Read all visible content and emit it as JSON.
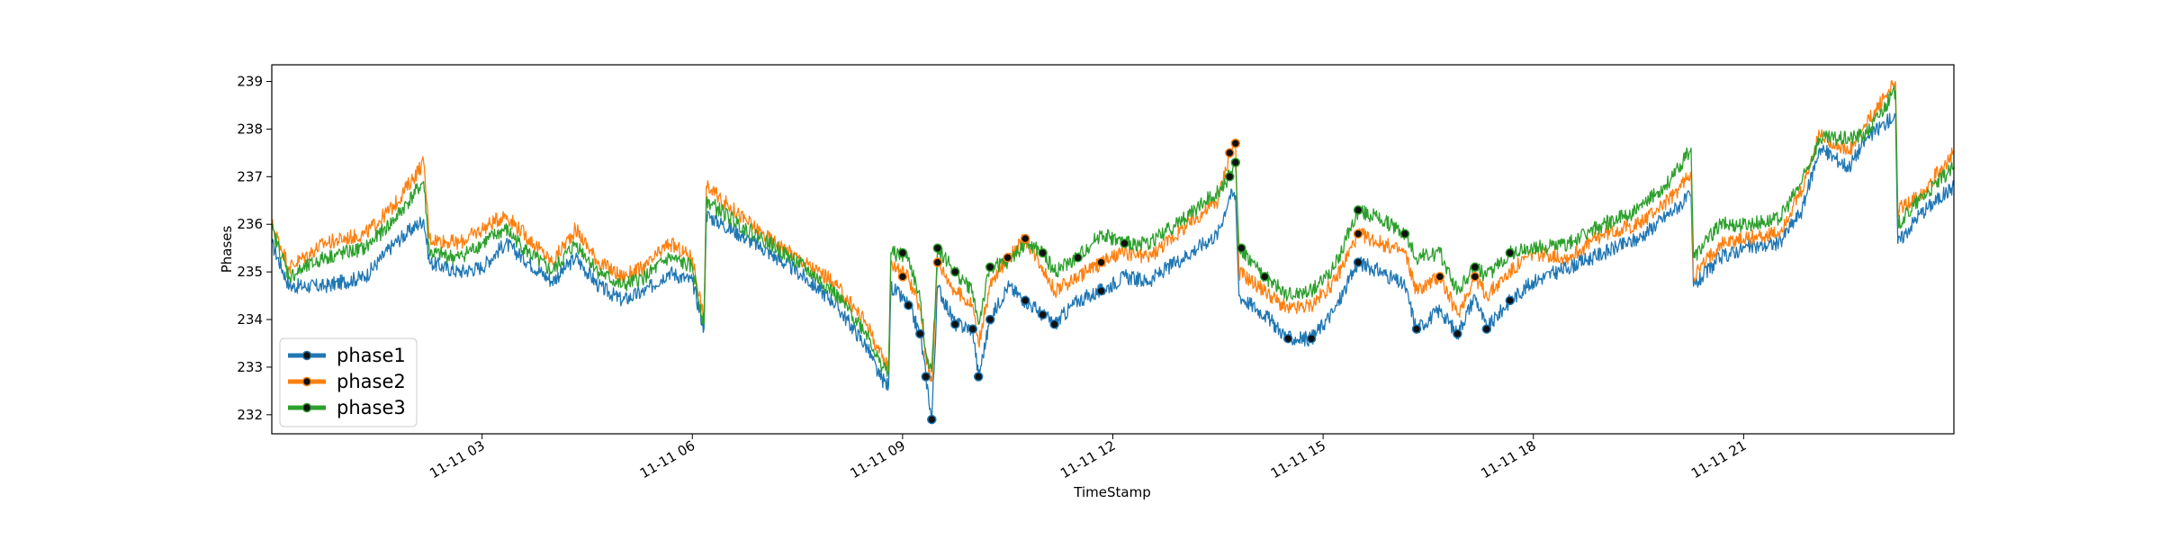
{
  "chart_data": {
    "type": "line",
    "title": "",
    "xlabel": "TimeStamp",
    "ylabel": "Phases",
    "x_range": [
      "00:00",
      "24:00"
    ],
    "ylim": [
      231.6,
      239.35
    ],
    "yticks": [
      232,
      233,
      234,
      235,
      236,
      237,
      238,
      239
    ],
    "xticks": [
      {
        "t": "03:00",
        "label": "11-11 03"
      },
      {
        "t": "06:00",
        "label": "11-11 06"
      },
      {
        "t": "09:00",
        "label": "11-11 09"
      },
      {
        "t": "12:00",
        "label": "11-11 12"
      },
      {
        "t": "15:00",
        "label": "11-11 15"
      },
      {
        "t": "18:00",
        "label": "11-11 18"
      },
      {
        "t": "21:00",
        "label": "11-11 21"
      }
    ],
    "grid": false,
    "legend": "lower-left",
    "series": [
      {
        "name": "phase1",
        "color": "#1f77b4",
        "points": [
          [
            "00:00",
            235.6
          ],
          [
            "00:15",
            234.7
          ],
          [
            "00:45",
            234.7
          ],
          [
            "01:20",
            234.9
          ],
          [
            "01:45",
            235.6
          ],
          [
            "02:10",
            236.1
          ],
          [
            "02:15",
            235.2
          ],
          [
            "02:40",
            235.0
          ],
          [
            "03:00",
            235.1
          ],
          [
            "03:20",
            235.6
          ],
          [
            "03:40",
            235.2
          ],
          [
            "04:00",
            234.8
          ],
          [
            "04:20",
            235.3
          ],
          [
            "04:40",
            234.7
          ],
          [
            "05:00",
            234.4
          ],
          [
            "05:20",
            234.6
          ],
          [
            "05:40",
            235.0
          ],
          [
            "06:00",
            234.8
          ],
          [
            "06:10",
            233.8
          ],
          [
            "06:12",
            236.2
          ],
          [
            "06:40",
            235.8
          ],
          [
            "07:00",
            235.5
          ],
          [
            "07:30",
            235.0
          ],
          [
            "08:00",
            234.4
          ],
          [
            "08:30",
            233.4
          ],
          [
            "08:40",
            232.8
          ],
          [
            "08:48",
            232.6
          ],
          [
            "08:50",
            234.7
          ],
          [
            "09:05",
            234.3
          ],
          [
            "09:15",
            233.7
          ],
          [
            "09:20",
            232.8
          ],
          [
            "09:25",
            231.9
          ],
          [
            "09:30",
            234.7
          ],
          [
            "09:45",
            233.9
          ],
          [
            "10:00",
            233.8
          ],
          [
            "10:05",
            232.8
          ],
          [
            "10:15",
            234.0
          ],
          [
            "10:30",
            234.7
          ],
          [
            "10:45",
            234.4
          ],
          [
            "11:00",
            234.1
          ],
          [
            "11:10",
            233.9
          ],
          [
            "11:30",
            234.4
          ],
          [
            "11:50",
            234.6
          ],
          [
            "12:10",
            234.9
          ],
          [
            "12:30",
            234.8
          ],
          [
            "13:00",
            235.3
          ],
          [
            "13:30",
            235.8
          ],
          [
            "13:40",
            236.6
          ],
          [
            "13:45",
            236.6
          ],
          [
            "13:48",
            234.5
          ],
          [
            "14:10",
            234.1
          ],
          [
            "14:30",
            233.6
          ],
          [
            "14:50",
            233.6
          ],
          [
            "15:10",
            234.2
          ],
          [
            "15:30",
            235.2
          ],
          [
            "15:50",
            235.0
          ],
          [
            "16:10",
            234.7
          ],
          [
            "16:20",
            233.8
          ],
          [
            "16:40",
            234.2
          ],
          [
            "16:55",
            233.7
          ],
          [
            "17:10",
            234.5
          ],
          [
            "17:20",
            233.8
          ],
          [
            "17:40",
            234.4
          ],
          [
            "18:00",
            234.8
          ],
          [
            "18:30",
            235.1
          ],
          [
            "19:00",
            235.4
          ],
          [
            "19:30",
            235.7
          ],
          [
            "20:00",
            236.3
          ],
          [
            "20:15",
            236.6
          ],
          [
            "20:17",
            234.7
          ],
          [
            "20:40",
            235.3
          ],
          [
            "21:00",
            235.5
          ],
          [
            "21:30",
            235.6
          ],
          [
            "21:50",
            236.3
          ],
          [
            "22:05",
            237.6
          ],
          [
            "22:30",
            237.2
          ],
          [
            "22:45",
            237.8
          ],
          [
            "23:10",
            238.3
          ],
          [
            "23:12",
            235.6
          ],
          [
            "23:30",
            236.2
          ],
          [
            "24:00",
            236.8
          ]
        ]
      },
      {
        "name": "phase2",
        "color": "#ff7f0e",
        "points": [
          [
            "00:00",
            236.0
          ],
          [
            "00:15",
            235.1
          ],
          [
            "00:45",
            235.6
          ],
          [
            "01:20",
            235.8
          ],
          [
            "01:45",
            236.4
          ],
          [
            "02:10",
            237.3
          ],
          [
            "02:15",
            235.7
          ],
          [
            "02:40",
            235.6
          ],
          [
            "03:00",
            235.9
          ],
          [
            "03:20",
            236.2
          ],
          [
            "03:40",
            235.7
          ],
          [
            "04:00",
            235.2
          ],
          [
            "04:20",
            235.9
          ],
          [
            "04:40",
            235.2
          ],
          [
            "05:00",
            234.9
          ],
          [
            "05:20",
            235.1
          ],
          [
            "05:40",
            235.6
          ],
          [
            "06:00",
            235.3
          ],
          [
            "06:10",
            234.0
          ],
          [
            "06:12",
            236.8
          ],
          [
            "06:40",
            236.2
          ],
          [
            "07:00",
            235.8
          ],
          [
            "07:30",
            235.3
          ],
          [
            "08:00",
            234.8
          ],
          [
            "08:30",
            233.9
          ],
          [
            "08:40",
            233.3
          ],
          [
            "08:48",
            233.0
          ],
          [
            "08:50",
            235.2
          ],
          [
            "09:05",
            234.9
          ],
          [
            "09:15",
            234.2
          ],
          [
            "09:20",
            233.2
          ],
          [
            "09:25",
            232.7
          ],
          [
            "09:30",
            235.2
          ],
          [
            "09:45",
            234.6
          ],
          [
            "10:00",
            234.3
          ],
          [
            "10:05",
            233.5
          ],
          [
            "10:15",
            234.7
          ],
          [
            "10:30",
            235.3
          ],
          [
            "10:45",
            235.7
          ],
          [
            "11:00",
            235.1
          ],
          [
            "11:10",
            234.6
          ],
          [
            "11:30",
            234.9
          ],
          [
            "11:50",
            235.2
          ],
          [
            "12:10",
            235.4
          ],
          [
            "12:30",
            235.3
          ],
          [
            "13:00",
            235.9
          ],
          [
            "13:30",
            236.5
          ],
          [
            "13:40",
            237.5
          ],
          [
            "13:45",
            237.7
          ],
          [
            "13:48",
            235.0
          ],
          [
            "14:10",
            234.6
          ],
          [
            "14:30",
            234.2
          ],
          [
            "14:50",
            234.3
          ],
          [
            "15:10",
            234.8
          ],
          [
            "15:30",
            235.8
          ],
          [
            "15:50",
            235.6
          ],
          [
            "16:10",
            235.4
          ],
          [
            "16:20",
            234.6
          ],
          [
            "16:40",
            234.9
          ],
          [
            "16:55",
            234.1
          ],
          [
            "17:10",
            234.9
          ],
          [
            "17:20",
            234.5
          ],
          [
            "17:40",
            235.0
          ],
          [
            "18:00",
            235.4
          ],
          [
            "18:30",
            235.3
          ],
          [
            "19:00",
            235.8
          ],
          [
            "19:30",
            236.0
          ],
          [
            "20:00",
            236.6
          ],
          [
            "20:15",
            237.1
          ],
          [
            "20:17",
            234.9
          ],
          [
            "20:40",
            235.6
          ],
          [
            "21:00",
            235.7
          ],
          [
            "21:30",
            235.8
          ],
          [
            "21:50",
            236.7
          ],
          [
            "22:05",
            237.9
          ],
          [
            "22:30",
            237.5
          ],
          [
            "22:45",
            238.1
          ],
          [
            "23:10",
            239.0
          ],
          [
            "23:12",
            236.3
          ],
          [
            "23:30",
            236.6
          ],
          [
            "24:00",
            237.5
          ]
        ]
      },
      {
        "name": "phase3",
        "color": "#2ca02c",
        "points": [
          [
            "00:00",
            235.9
          ],
          [
            "00:15",
            234.9
          ],
          [
            "00:45",
            235.3
          ],
          [
            "01:20",
            235.5
          ],
          [
            "01:45",
            236.1
          ],
          [
            "02:10",
            236.9
          ],
          [
            "02:15",
            235.4
          ],
          [
            "02:40",
            235.3
          ],
          [
            "03:00",
            235.6
          ],
          [
            "03:20",
            235.9
          ],
          [
            "03:40",
            235.4
          ],
          [
            "04:00",
            235.0
          ],
          [
            "04:20",
            235.6
          ],
          [
            "04:40",
            235.0
          ],
          [
            "05:00",
            234.7
          ],
          [
            "05:20",
            234.9
          ],
          [
            "05:40",
            235.3
          ],
          [
            "06:00",
            235.1
          ],
          [
            "06:10",
            233.9
          ],
          [
            "06:12",
            236.5
          ],
          [
            "06:40",
            236.0
          ],
          [
            "07:00",
            235.7
          ],
          [
            "07:30",
            235.2
          ],
          [
            "08:00",
            234.6
          ],
          [
            "08:30",
            233.7
          ],
          [
            "08:40",
            233.1
          ],
          [
            "08:48",
            232.9
          ],
          [
            "08:50",
            235.4
          ],
          [
            "09:05",
            235.3
          ],
          [
            "09:15",
            234.4
          ],
          [
            "09:20",
            233.3
          ],
          [
            "09:25",
            232.9
          ],
          [
            "09:30",
            235.5
          ],
          [
            "09:45",
            235.0
          ],
          [
            "10:00",
            234.6
          ],
          [
            "10:05",
            233.9
          ],
          [
            "10:15",
            235.1
          ],
          [
            "10:30",
            235.2
          ],
          [
            "10:45",
            235.6
          ],
          [
            "11:00",
            235.4
          ],
          [
            "11:10",
            235.0
          ],
          [
            "11:30",
            235.3
          ],
          [
            "11:50",
            235.8
          ],
          [
            "12:10",
            235.6
          ],
          [
            "12:30",
            235.6
          ],
          [
            "13:00",
            236.1
          ],
          [
            "13:30",
            236.7
          ],
          [
            "13:40",
            237.0
          ],
          [
            "13:45",
            237.3
          ],
          [
            "13:48",
            235.5
          ],
          [
            "14:10",
            234.9
          ],
          [
            "14:30",
            234.5
          ],
          [
            "14:50",
            234.6
          ],
          [
            "15:10",
            235.1
          ],
          [
            "15:30",
            236.3
          ],
          [
            "15:50",
            236.1
          ],
          [
            "16:10",
            235.8
          ],
          [
            "16:20",
            235.3
          ],
          [
            "16:40",
            235.4
          ],
          [
            "16:55",
            234.6
          ],
          [
            "17:10",
            235.1
          ],
          [
            "17:20",
            234.9
          ],
          [
            "17:40",
            235.4
          ],
          [
            "18:00",
            235.5
          ],
          [
            "18:30",
            235.6
          ],
          [
            "19:00",
            236.0
          ],
          [
            "19:30",
            236.3
          ],
          [
            "20:00",
            237.0
          ],
          [
            "20:15",
            237.6
          ],
          [
            "20:17",
            235.3
          ],
          [
            "20:40",
            236.0
          ],
          [
            "21:00",
            236.0
          ],
          [
            "21:30",
            236.1
          ],
          [
            "21:50",
            236.9
          ],
          [
            "22:05",
            237.8
          ],
          [
            "22:30",
            237.8
          ],
          [
            "22:45",
            237.9
          ],
          [
            "23:10",
            238.8
          ],
          [
            "23:12",
            236.0
          ],
          [
            "23:30",
            236.5
          ],
          [
            "24:00",
            237.2
          ]
        ]
      }
    ],
    "markers": {
      "phase1": [
        [
          "09:20",
          232.8
        ],
        [
          "09:25",
          231.9
        ],
        [
          "09:15",
          233.7
        ],
        [
          "09:05",
          234.3
        ],
        [
          "09:45",
          233.9
        ],
        [
          "10:00",
          233.8
        ],
        [
          "10:05",
          232.8
        ],
        [
          "10:15",
          234.0
        ],
        [
          "10:45",
          234.4
        ],
        [
          "11:00",
          234.1
        ],
        [
          "11:10",
          233.9
        ],
        [
          "11:50",
          234.6
        ],
        [
          "14:30",
          233.6
        ],
        [
          "14:50",
          233.6
        ],
        [
          "15:30",
          235.2
        ],
        [
          "16:20",
          233.8
        ],
        [
          "16:55",
          233.7
        ],
        [
          "17:20",
          233.8
        ],
        [
          "17:40",
          234.4
        ]
      ],
      "phase2": [
        [
          "09:00",
          234.9
        ],
        [
          "09:30",
          235.2
        ],
        [
          "10:30",
          235.3
        ],
        [
          "10:45",
          235.7
        ],
        [
          "11:50",
          235.2
        ],
        [
          "13:40",
          237.5
        ],
        [
          "13:45",
          237.7
        ],
        [
          "15:30",
          235.8
        ],
        [
          "16:40",
          234.9
        ],
        [
          "17:10",
          234.9
        ]
      ],
      "phase3": [
        [
          "09:00",
          235.4
        ],
        [
          "09:30",
          235.5
        ],
        [
          "09:45",
          235.0
        ],
        [
          "10:15",
          235.1
        ],
        [
          "11:00",
          235.4
        ],
        [
          "11:30",
          235.3
        ],
        [
          "12:10",
          235.6
        ],
        [
          "13:40",
          237.0
        ],
        [
          "13:45",
          237.3
        ],
        [
          "14:10",
          234.9
        ],
        [
          "15:30",
          236.3
        ],
        [
          "16:10",
          235.8
        ],
        [
          "17:10",
          235.1
        ],
        [
          "17:40",
          235.4
        ],
        [
          "13:50",
          235.5
        ]
      ]
    }
  }
}
